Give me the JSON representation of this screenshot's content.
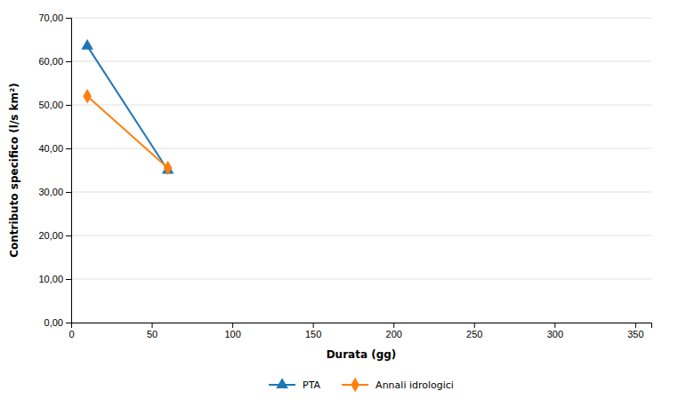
{
  "chart_data": {
    "type": "line",
    "xlabel": "Durata (gg)",
    "ylabel": "Contributo specifico (l/s km²)",
    "x": [
      10,
      60
    ],
    "series": [
      {
        "name": "PTA",
        "marker": "triangle",
        "values": [
          63.5,
          35.0
        ]
      },
      {
        "name": "Annali idrologici",
        "marker": "diamond",
        "values": [
          52.0,
          35.5
        ]
      }
    ],
    "xlim": [
      0,
      360
    ],
    "ylim": [
      0,
      70
    ],
    "xticks": [
      0,
      50,
      100,
      150,
      200,
      250,
      300,
      350
    ],
    "yticks": [
      {
        "value": 0,
        "label": "0,00"
      },
      {
        "value": 10,
        "label": "10,00"
      },
      {
        "value": 20,
        "label": "20,00"
      },
      {
        "value": 30,
        "label": "30,00"
      },
      {
        "value": 40,
        "label": "40,00"
      },
      {
        "value": 50,
        "label": "50,00"
      },
      {
        "value": 60,
        "label": "60,00"
      },
      {
        "value": 70,
        "label": "70,00"
      }
    ],
    "grid": true,
    "legend": "bottom"
  }
}
